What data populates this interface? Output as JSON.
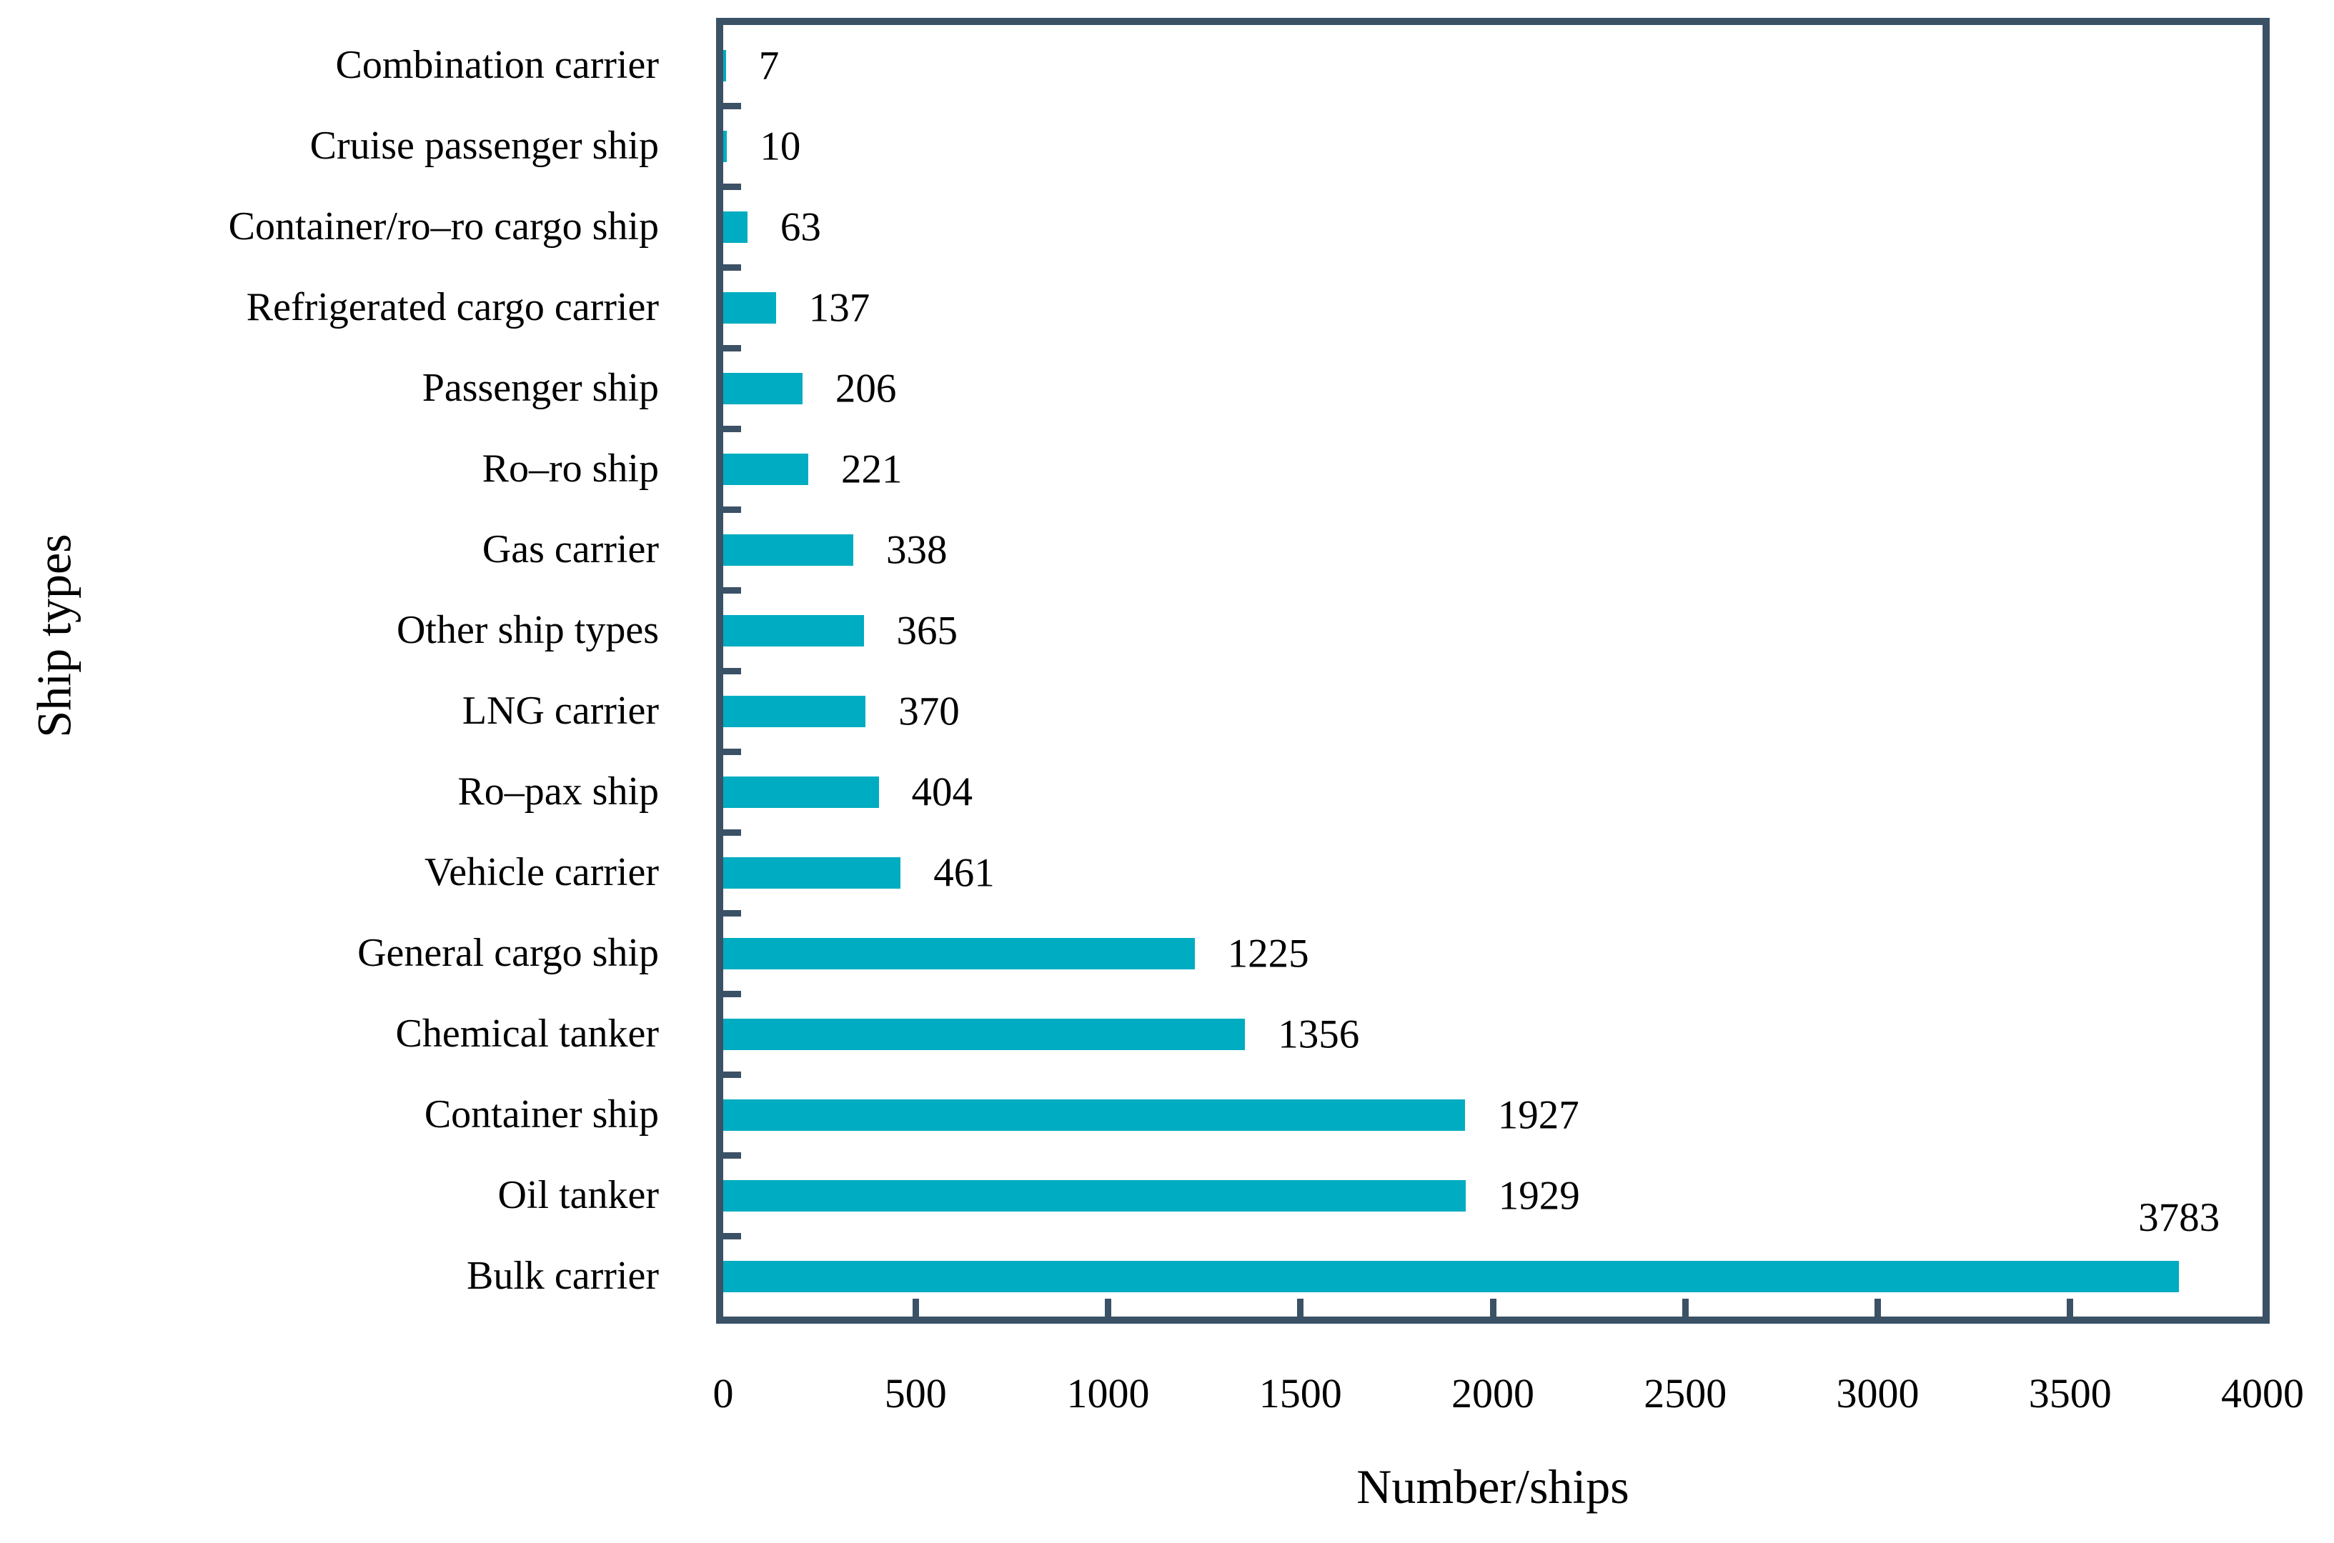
{
  "figure": {
    "background": "#ffffff",
    "bar_color": "#00ACC1",
    "frame_color": "#3B5166",
    "text_color": "#000000"
  },
  "chart_data": {
    "type": "bar",
    "orientation": "horizontal",
    "title": "",
    "xlabel": "Number/ships",
    "ylabel": "Ship types",
    "xlim": [
      0,
      4000
    ],
    "xticks": [
      0,
      500,
      1000,
      1500,
      2000,
      2500,
      3000,
      3500,
      4000
    ],
    "grid": false,
    "legend_position": "none",
    "value_labels_shown": true,
    "categories": [
      "Combination carrier",
      "Cruise passenger ship",
      "Container/ro–ro cargo ship",
      "Refrigerated cargo carrier",
      "Passenger ship",
      "Ro–ro ship",
      "Gas carrier",
      "Other ship types",
      "LNG carrier",
      "Ro–pax ship",
      "Vehicle carrier",
      "General cargo ship",
      "Chemical tanker",
      "Container ship",
      "Oil tanker",
      "Bulk carrier"
    ],
    "values": [
      7,
      10,
      63,
      137,
      206,
      221,
      338,
      365,
      370,
      404,
      461,
      1225,
      1356,
      1927,
      1929,
      3783
    ]
  }
}
